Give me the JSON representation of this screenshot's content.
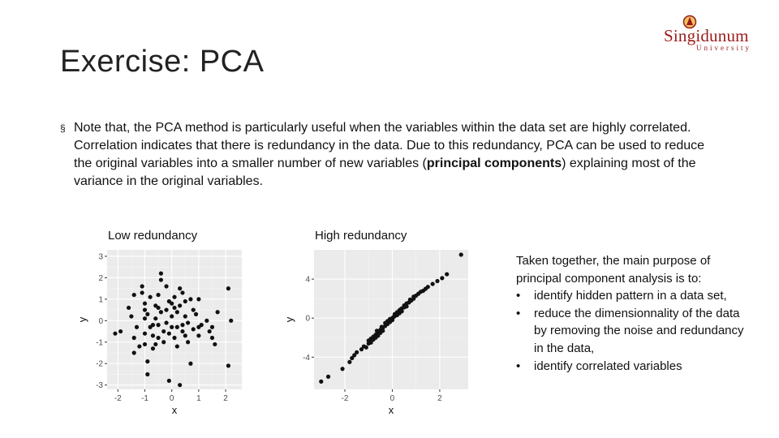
{
  "slide": {
    "title": "Exercise: PCA",
    "logo": {
      "name": "Singidunum",
      "sub": "University"
    },
    "paragraph": {
      "bullet": "§",
      "text_before": "Note that, the PCA method is particularly useful when the variables within the data set are highly correlated. Correlation indicates that there is redundancy in the data. Due to this redundancy, PCA can be used to reduce the original variables into a smaller number of new variables (",
      "bold": "principal components",
      "text_after": ") explaining most of the variance in the original variables."
    },
    "side": {
      "intro": "Taken together, the main purpose of principal component analysis is to:",
      "bullets": [
        "identify hidden pattern in a data set,",
        "reduce the dimensionnality of the data by removing the noise and redundancy in the data,",
        "identify correlated variables"
      ]
    }
  },
  "chart_data": [
    {
      "type": "scatter",
      "title": "Low redundancy",
      "xlabel": "x",
      "ylabel": "y",
      "xlim": [
        -2.4,
        2.6
      ],
      "ylim": [
        -3.2,
        3.3
      ],
      "xticks": [
        -2,
        -1,
        0,
        1,
        2
      ],
      "yticks": [
        -3,
        -2,
        -1,
        0,
        1,
        2,
        3
      ],
      "grid": true,
      "points": [
        [
          -2.1,
          -0.6
        ],
        [
          -1.9,
          -0.5
        ],
        [
          -1.6,
          0.6
        ],
        [
          -1.5,
          0.2
        ],
        [
          -1.4,
          -0.8
        ],
        [
          -1.4,
          -1.5
        ],
        [
          -1.3,
          -0.3
        ],
        [
          -1.2,
          -1.2
        ],
        [
          -1.1,
          1.6
        ],
        [
          -1.1,
          1.3
        ],
        [
          -1.0,
          0.8
        ],
        [
          -1.0,
          0.5
        ],
        [
          -1.0,
          0.1
        ],
        [
          -1.0,
          -0.6
        ],
        [
          -1.0,
          -1.1
        ],
        [
          -0.9,
          0.3
        ],
        [
          -0.9,
          -1.9
        ],
        [
          -0.9,
          -2.5
        ],
        [
          -0.8,
          1.1
        ],
        [
          -0.8,
          -0.3
        ],
        [
          -0.7,
          -0.7
        ],
        [
          -0.7,
          -1.3
        ],
        [
          -0.6,
          0.7
        ],
        [
          -0.6,
          0.1
        ],
        [
          -0.5,
          1.2
        ],
        [
          -0.5,
          0.6
        ],
        [
          -0.5,
          -0.2
        ],
        [
          -0.5,
          -0.8
        ],
        [
          -0.4,
          2.2
        ],
        [
          -0.4,
          1.9
        ],
        [
          -0.4,
          0.4
        ],
        [
          -0.3,
          -0.5
        ],
        [
          -0.3,
          -1.0
        ],
        [
          -0.2,
          1.6
        ],
        [
          -0.2,
          0.5
        ],
        [
          -0.2,
          -0.1
        ],
        [
          -0.1,
          0.9
        ],
        [
          -0.1,
          -0.6
        ],
        [
          -0.1,
          -2.8
        ],
        [
          0.0,
          0.8
        ],
        [
          0.0,
          0.2
        ],
        [
          0.0,
          -0.3
        ],
        [
          0.1,
          1.1
        ],
        [
          0.1,
          -0.8
        ],
        [
          0.2,
          0.4
        ],
        [
          0.2,
          -0.3
        ],
        [
          0.2,
          -1.2
        ],
        [
          0.3,
          1.5
        ],
        [
          0.3,
          0.7
        ],
        [
          0.3,
          -3.0
        ],
        [
          0.4,
          1.3
        ],
        [
          0.4,
          -0.5
        ],
        [
          0.5,
          0.9
        ],
        [
          0.5,
          0.2
        ],
        [
          0.5,
          -0.7
        ],
        [
          0.6,
          -0.1
        ],
        [
          0.6,
          -1.0
        ],
        [
          0.7,
          1.0
        ],
        [
          0.7,
          -2.0
        ],
        [
          0.8,
          -0.4
        ],
        [
          0.8,
          0.5
        ],
        [
          0.9,
          0.3
        ],
        [
          1.0,
          -0.7
        ],
        [
          1.0,
          -0.3
        ],
        [
          1.0,
          1.0
        ],
        [
          1.1,
          -0.2
        ],
        [
          1.3,
          0.0
        ],
        [
          1.4,
          -0.5
        ],
        [
          1.5,
          -0.3
        ],
        [
          1.5,
          -0.8
        ],
        [
          1.6,
          -1.1
        ],
        [
          1.7,
          0.4
        ],
        [
          2.1,
          1.5
        ],
        [
          2.1,
          -2.1
        ],
        [
          2.2,
          0.0
        ],
        [
          -1.4,
          1.2
        ],
        [
          -0.7,
          -0.2
        ],
        [
          0.1,
          0.6
        ],
        [
          0.4,
          -0.2
        ],
        [
          -0.6,
          -1.1
        ]
      ]
    },
    {
      "type": "scatter",
      "title": "High redundancy",
      "xlabel": "x",
      "ylabel": "y",
      "xlim": [
        -3.3,
        3.2
      ],
      "ylim": [
        -7.3,
        7.0
      ],
      "xticks": [
        -2,
        0,
        2
      ],
      "yticks": [
        -4,
        0,
        4
      ],
      "grid": true,
      "points": [
        [
          -3.0,
          -6.5
        ],
        [
          -2.7,
          -6.0
        ],
        [
          -2.1,
          -5.2
        ],
        [
          -1.8,
          -4.5
        ],
        [
          -1.7,
          -4.1
        ],
        [
          -1.6,
          -3.8
        ],
        [
          -1.3,
          -3.2
        ],
        [
          -1.2,
          -2.9
        ],
        [
          -1.1,
          -3.0
        ],
        [
          -1.0,
          -2.6
        ],
        [
          -1.0,
          -2.3
        ],
        [
          -0.9,
          -2.5
        ],
        [
          -0.9,
          -2.1
        ],
        [
          -0.8,
          -1.9
        ],
        [
          -0.8,
          -2.2
        ],
        [
          -0.7,
          -1.7
        ],
        [
          -0.7,
          -2.0
        ],
        [
          -0.6,
          -1.5
        ],
        [
          -0.6,
          -1.8
        ],
        [
          -0.5,
          -1.2
        ],
        [
          -0.5,
          -1.5
        ],
        [
          -0.4,
          -1.0
        ],
        [
          -0.4,
          -1.3
        ],
        [
          -0.3,
          -0.8
        ],
        [
          -0.3,
          -0.5
        ],
        [
          -0.2,
          -0.6
        ],
        [
          -0.2,
          -0.3
        ],
        [
          -0.1,
          -0.4
        ],
        [
          -0.1,
          -0.1
        ],
        [
          0.0,
          0.0
        ],
        [
          0.0,
          -0.2
        ],
        [
          0.1,
          0.2
        ],
        [
          0.1,
          0.4
        ],
        [
          0.2,
          0.3
        ],
        [
          0.2,
          0.6
        ],
        [
          0.3,
          0.5
        ],
        [
          0.3,
          0.8
        ],
        [
          0.4,
          0.7
        ],
        [
          0.4,
          1.0
        ],
        [
          0.5,
          1.1
        ],
        [
          0.5,
          1.3
        ],
        [
          0.6,
          1.2
        ],
        [
          0.6,
          1.5
        ],
        [
          0.7,
          1.6
        ],
        [
          0.8,
          1.8
        ],
        [
          0.9,
          2.0
        ],
        [
          0.9,
          2.2
        ],
        [
          1.0,
          2.3
        ],
        [
          1.1,
          2.5
        ],
        [
          1.2,
          2.7
        ],
        [
          1.3,
          2.8
        ],
        [
          1.5,
          3.2
        ],
        [
          1.7,
          3.5
        ],
        [
          1.9,
          3.8
        ],
        [
          2.1,
          4.1
        ],
        [
          2.3,
          4.5
        ],
        [
          2.9,
          6.5
        ],
        [
          -1.5,
          -3.5
        ],
        [
          -0.65,
          -1.3
        ],
        [
          0.35,
          0.9
        ],
        [
          0.75,
          1.9
        ],
        [
          1.4,
          3.0
        ],
        [
          -0.45,
          -0.9
        ],
        [
          0.05,
          0.1
        ]
      ]
    }
  ]
}
